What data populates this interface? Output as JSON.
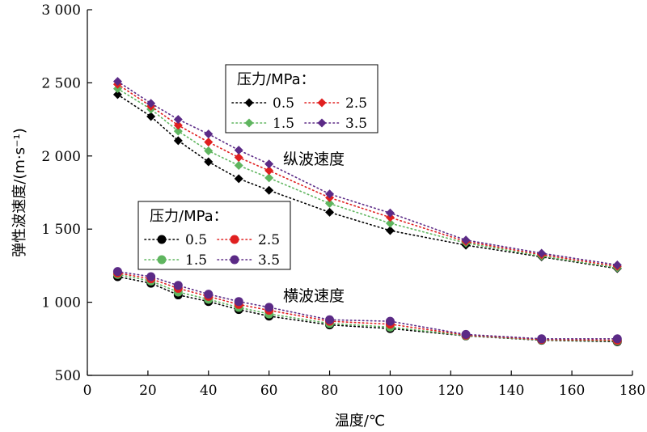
{
  "chart_data": {
    "type": "line",
    "xlabel": "温度/℃",
    "ylabel": "弹性波速度/(m·s⁻¹)",
    "xlim": [
      0,
      180
    ],
    "ylim": [
      500,
      3000
    ],
    "xticks": [
      0,
      20,
      40,
      60,
      80,
      100,
      120,
      140,
      160,
      180
    ],
    "yticks": [
      500,
      1000,
      1500,
      2000,
      2500,
      3000
    ],
    "xtick_labels": [
      "0",
      "20",
      "40",
      "60",
      "80",
      "100",
      "120",
      "140",
      "160",
      "180"
    ],
    "ytick_labels": [
      "500",
      "1 000",
      "1 500",
      "2 000",
      "2 500",
      "3 000"
    ],
    "x": [
      10,
      21,
      30,
      40,
      50,
      60,
      80,
      100,
      125,
      150,
      175
    ],
    "groups": [
      {
        "label": "纵波速度",
        "marker": "diamond",
        "legend_title": "压力/MPa：",
        "series": [
          {
            "name": "0.5",
            "color": "#000000",
            "values": [
              2420,
              2270,
              2105,
              1960,
              1845,
              1765,
              1615,
              1490,
              1390,
              1310,
              1230
            ]
          },
          {
            "name": "1.5",
            "color": "#5fb55f",
            "values": [
              2460,
              2320,
              2170,
              2035,
              1935,
              1850,
              1675,
              1540,
              1405,
              1315,
              1235
            ]
          },
          {
            "name": "2.5",
            "color": "#e02020",
            "values": [
              2490,
              2340,
              2210,
              2095,
              1990,
              1900,
              1715,
              1580,
              1415,
              1325,
              1245
            ]
          },
          {
            "name": "3.5",
            "color": "#5b2a86",
            "values": [
              2510,
              2360,
              2250,
              2150,
              2040,
              1945,
              1740,
              1610,
              1425,
              1335,
              1255
            ]
          }
        ]
      },
      {
        "label": "横波速度",
        "marker": "circle",
        "legend_title": "压力/MPa：",
        "series": [
          {
            "name": "0.5",
            "color": "#000000",
            "values": [
              1175,
              1130,
              1050,
              1005,
              950,
              905,
              845,
              820,
              770,
              740,
              730
            ]
          },
          {
            "name": "1.5",
            "color": "#5fb55f",
            "values": [
              1190,
              1145,
              1070,
              1020,
              965,
              920,
              855,
              830,
              772,
              742,
              735
            ]
          },
          {
            "name": "2.5",
            "color": "#e02020",
            "values": [
              1200,
              1160,
              1095,
              1040,
              985,
              945,
              870,
              850,
              775,
              745,
              740
            ]
          },
          {
            "name": "3.5",
            "color": "#5b2a86",
            "values": [
              1210,
              1175,
              1115,
              1055,
              1005,
              965,
              880,
              870,
              780,
              750,
              750
            ]
          }
        ]
      }
    ],
    "grid": false
  }
}
